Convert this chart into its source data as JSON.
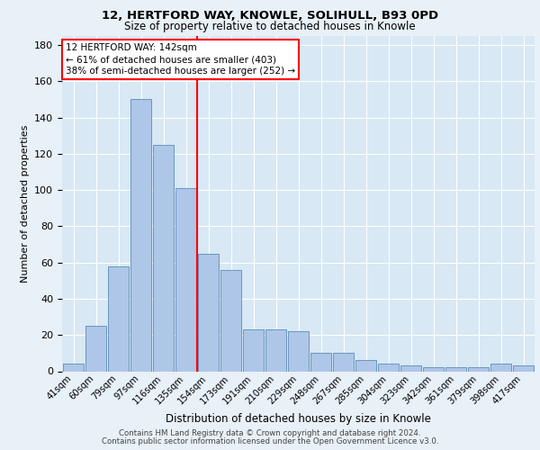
{
  "title1": "12, HERTFORD WAY, KNOWLE, SOLIHULL, B93 0PD",
  "title2": "Size of property relative to detached houses in Knowle",
  "xlabel": "Distribution of detached houses by size in Knowle",
  "ylabel": "Number of detached properties",
  "categories": [
    "41sqm",
    "60sqm",
    "79sqm",
    "97sqm",
    "116sqm",
    "135sqm",
    "154sqm",
    "173sqm",
    "191sqm",
    "210sqm",
    "229sqm",
    "248sqm",
    "267sqm",
    "285sqm",
    "304sqm",
    "323sqm",
    "342sqm",
    "361sqm",
    "379sqm",
    "398sqm",
    "417sqm"
  ],
  "values": [
    4,
    25,
    58,
    150,
    125,
    101,
    65,
    56,
    23,
    23,
    22,
    10,
    10,
    6,
    4,
    3,
    2,
    2,
    2,
    4,
    3
  ],
  "bar_color": "#aec6e8",
  "bar_edge_color": "#5b8db8",
  "vline_color": "red",
  "annotation_line1": "12 HERTFORD WAY: 142sqm",
  "annotation_line2": "← 61% of detached houses are smaller (403)",
  "annotation_line3": "38% of semi-detached houses are larger (252) →",
  "ylim": [
    0,
    185
  ],
  "yticks": [
    0,
    20,
    40,
    60,
    80,
    100,
    120,
    140,
    160,
    180
  ],
  "footer1": "Contains HM Land Registry data © Crown copyright and database right 2024.",
  "footer2": "Contains public sector information licensed under the Open Government Licence v3.0.",
  "bg_color": "#e8f0f8",
  "plot_bg_color": "#d8e8f4"
}
